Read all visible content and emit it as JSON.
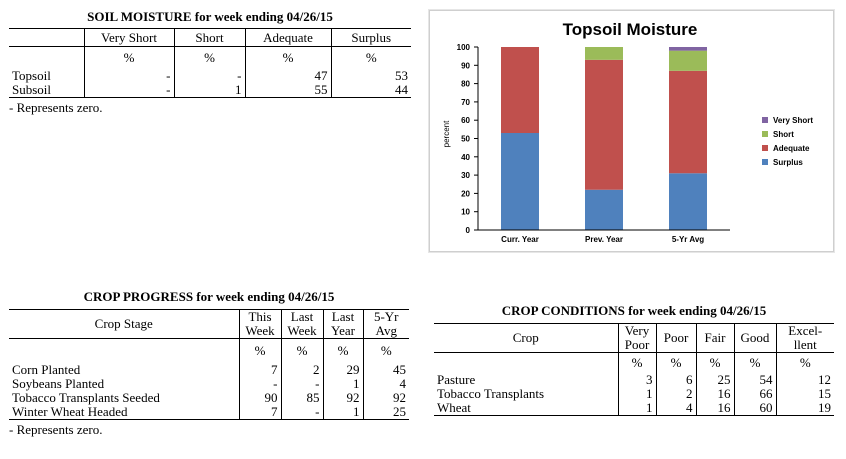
{
  "soil": {
    "title": "SOIL MOISTURE for week ending 04/26/15",
    "headers": [
      "Very Short",
      "Short",
      "Adequate",
      "Surplus"
    ],
    "units": [
      "%",
      "%",
      "%",
      "%"
    ],
    "rows": [
      {
        "label": "Topsoil",
        "values": [
          "-",
          "-",
          "47",
          "53"
        ]
      },
      {
        "label": "Subsoil",
        "values": [
          "-",
          "1",
          "55",
          "44"
        ]
      }
    ],
    "note": "- Represents zero."
  },
  "progress": {
    "title": "CROP PROGRESS for week ending 04/26/15",
    "stage_header": "Crop Stage",
    "col_line1": [
      "This",
      "Last",
      "Last",
      "5-Yr"
    ],
    "col_line2": [
      "Week",
      "Week",
      "Year",
      "Avg"
    ],
    "units": [
      "%",
      "%",
      "%",
      "%"
    ],
    "rows": [
      {
        "label": "Corn Planted",
        "values": [
          "7",
          "2",
          "29",
          "45"
        ]
      },
      {
        "label": "Soybeans Planted",
        "values": [
          "-",
          "-",
          "1",
          "4"
        ]
      },
      {
        "label": "Tobacco Transplants Seeded",
        "values": [
          "90",
          "85",
          "92",
          "92"
        ]
      },
      {
        "label": "Winter Wheat Headed",
        "values": [
          "7",
          "-",
          "1",
          "25"
        ]
      }
    ],
    "note": "- Represents zero."
  },
  "conditions": {
    "title": "CROP CONDITIONS for week ending 04/26/15",
    "crop_header": "Crop",
    "col_line1": [
      "Very",
      "Poor",
      "Fair",
      "Good",
      "Excel-"
    ],
    "col_line2": [
      "Poor",
      "",
      "",
      "",
      "llent"
    ],
    "units": [
      "%",
      "%",
      "%",
      "%",
      "%"
    ],
    "rows": [
      {
        "label": "Pasture",
        "values": [
          "3",
          "6",
          "25",
          "54",
          "12"
        ]
      },
      {
        "label": "Tobacco Transplants",
        "values": [
          "1",
          "2",
          "16",
          "66",
          "15"
        ]
      },
      {
        "label": "Wheat",
        "values": [
          "1",
          "4",
          "16",
          "60",
          "19"
        ]
      }
    ]
  },
  "chart_data": {
    "type": "bar",
    "stacked": true,
    "title": "Topsoil Moisture",
    "xlabel": "",
    "ylabel": "percent",
    "ylim": [
      0,
      100
    ],
    "yticks": [
      "0",
      "10",
      "20",
      "30",
      "40",
      "50",
      "60",
      "70",
      "80",
      "90",
      "100"
    ],
    "categories": [
      "Curr. Year",
      "Prev. Year",
      "5-Yr Avg"
    ],
    "series": [
      {
        "name": "Surplus",
        "color": "#4f81bd",
        "values": [
          53,
          22,
          31
        ]
      },
      {
        "name": "Adequate",
        "color": "#c0504d",
        "values": [
          47,
          71,
          56
        ]
      },
      {
        "name": "Short",
        "color": "#9bbb59",
        "values": [
          0,
          7,
          11
        ]
      },
      {
        "name": "Very Short",
        "color": "#8064a2",
        "values": [
          0,
          0,
          2
        ]
      }
    ],
    "legend_order": [
      "Very Short",
      "Short",
      "Adequate",
      "Surplus"
    ],
    "legend_position": "right",
    "grid": false
  }
}
